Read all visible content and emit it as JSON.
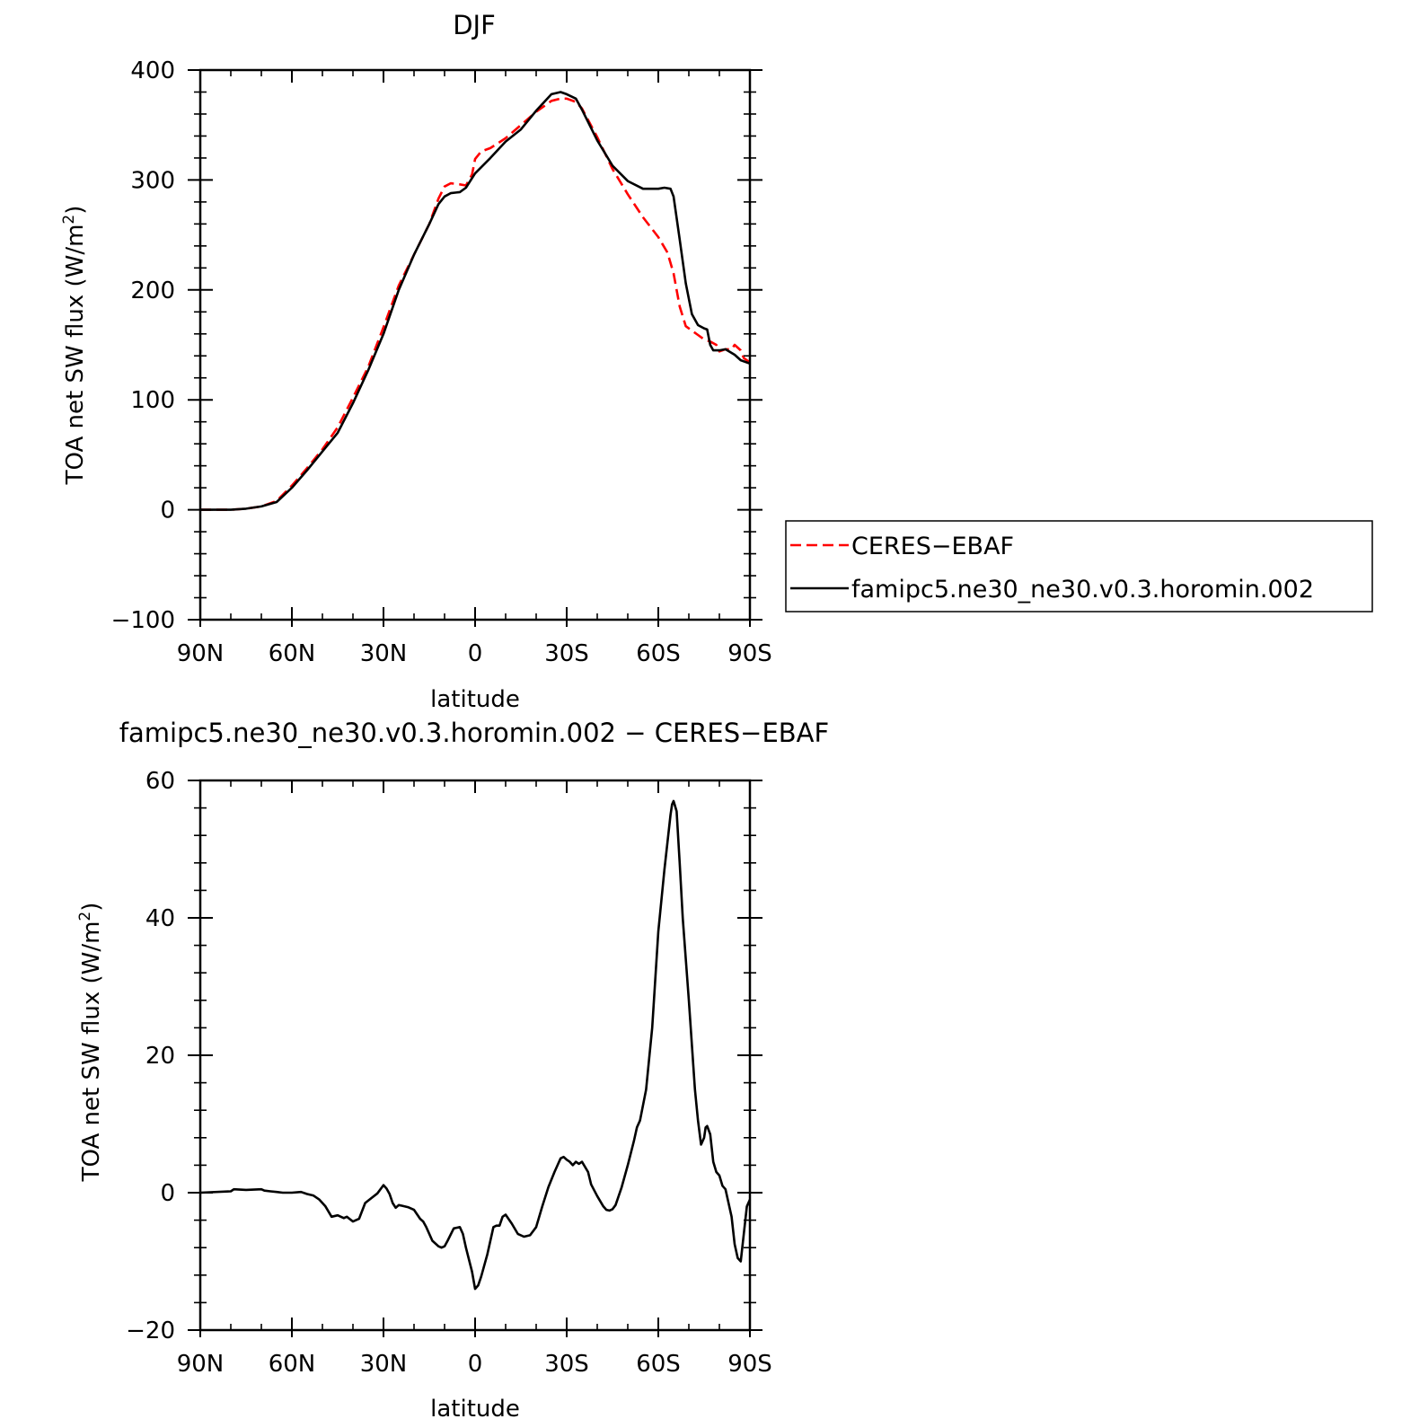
{
  "chart_data": [
    {
      "type": "line",
      "title": "DJF",
      "xlabel": "latitude",
      "ylabel_main": "TOA net SW flux (W/m",
      "ylabel_sup": "2",
      "ylabel_close": ")",
      "xlim": [
        90,
        -90
      ],
      "ylim": [
        -100,
        400
      ],
      "xticks": [
        90,
        60,
        30,
        0,
        -30,
        -60,
        -90
      ],
      "xtick_labels": [
        "90N",
        "60N",
        "30N",
        "0",
        "30S",
        "60S",
        "90S"
      ],
      "yticks": [
        -100,
        0,
        100,
        200,
        300,
        400
      ],
      "ytick_labels": [
        "−100",
        "0",
        "100",
        "200",
        "300",
        "400"
      ],
      "legend_position": "right",
      "series": [
        {
          "name": "CERES−EBAF",
          "color": "#ff0000",
          "dash": "dashed",
          "x": [
            90,
            85,
            80,
            75,
            70,
            65,
            60,
            55,
            50,
            45,
            40,
            35,
            30,
            25,
            20,
            15,
            12,
            10,
            8,
            5,
            3,
            1,
            0,
            -2,
            -5,
            -10,
            -15,
            -20,
            -25,
            -28,
            -30,
            -33,
            -35,
            -40,
            -45,
            -50,
            -55,
            -60,
            -63,
            -65,
            -67,
            -69,
            -71,
            -73,
            -75,
            -77,
            -79,
            -80,
            -82,
            -84,
            -85,
            -87,
            -88,
            -90
          ],
          "y": [
            0,
            0,
            0,
            1,
            3,
            8,
            22,
            38,
            55,
            75,
            102,
            130,
            166,
            204,
            232,
            260,
            283,
            294,
            297,
            296,
            295,
            305,
            319,
            326,
            329,
            338,
            350,
            362,
            372,
            374,
            374,
            371,
            365,
            339,
            310,
            287,
            266,
            248,
            234,
            215,
            185,
            167,
            163,
            159,
            155,
            153,
            150,
            144,
            146,
            146,
            150,
            145,
            138,
            134
          ]
        },
        {
          "name": "famipc5.ne30_ne30.v0.3.horomin.002",
          "color": "#000000",
          "dash": "solid",
          "x": [
            90,
            85,
            80,
            75,
            70,
            65,
            60,
            55,
            50,
            45,
            40,
            35,
            30,
            25,
            20,
            15,
            12,
            10,
            8,
            5,
            3,
            0,
            -5,
            -10,
            -15,
            -20,
            -25,
            -28,
            -30,
            -33,
            -35,
            -40,
            -45,
            -50,
            -55,
            -60,
            -62,
            -64,
            -65,
            -67,
            -69,
            -71,
            -73,
            -75,
            -76,
            -77,
            -78,
            -80,
            -82,
            -85,
            -87,
            -90
          ],
          "y": [
            0,
            0,
            0,
            1,
            3,
            7,
            20,
            36,
            53,
            70,
            97,
            127,
            160,
            200,
            232,
            260,
            278,
            285,
            288,
            289,
            293,
            306,
            320,
            335,
            346,
            363,
            378,
            380,
            378,
            374,
            364,
            336,
            313,
            299,
            292,
            292,
            293,
            292,
            285,
            246,
            206,
            178,
            168,
            165,
            164,
            150,
            145,
            145,
            146,
            141,
            136,
            133
          ]
        }
      ]
    },
    {
      "type": "line",
      "title": "famipc5.ne30_ne30.v0.3.horomin.002 − CERES−EBAF",
      "xlabel": "latitude",
      "ylabel_main": "TOA net SW flux (W/m",
      "ylabel_sup": "2",
      "ylabel_close": ")",
      "xlim": [
        90,
        -90
      ],
      "ylim": [
        -20,
        60
      ],
      "xticks": [
        90,
        60,
        30,
        0,
        -30,
        -60,
        -90
      ],
      "xtick_labels": [
        "90N",
        "60N",
        "30N",
        "0",
        "30S",
        "60S",
        "90S"
      ],
      "yticks": [
        -20,
        0,
        20,
        40,
        60
      ],
      "ytick_labels": [
        "−20",
        "0",
        "20",
        "40",
        "60"
      ],
      "series": [
        {
          "name": "",
          "color": "#000000",
          "dash": "solid",
          "x": [
            90,
            80,
            79,
            75,
            70,
            69,
            67,
            65,
            63,
            60,
            57,
            55,
            53,
            51,
            49,
            47,
            45,
            43,
            42,
            40,
            38,
            36,
            34,
            32,
            30,
            29,
            28,
            27,
            26,
            25,
            24,
            22,
            20,
            18,
            17,
            16,
            14,
            12,
            11,
            10,
            9,
            7,
            5,
            4,
            3,
            1,
            0,
            -1,
            -2,
            -4,
            -6,
            -7,
            -8,
            -9,
            -10,
            -12,
            -14,
            -16,
            -18,
            -20,
            -22,
            -24,
            -26,
            -27,
            -28,
            -29,
            -30,
            -31,
            -32,
            -33,
            -34,
            -35,
            -37,
            -38,
            -40,
            -42,
            -43,
            -44,
            -45,
            -46,
            -48,
            -50,
            -52,
            -53,
            -54,
            -56,
            -58,
            -59,
            -60,
            -62,
            -63,
            -64,
            -64.5,
            -65,
            -66,
            -67,
            -68,
            -70,
            -72,
            -73,
            -74,
            -75,
            -75.5,
            -76,
            -77,
            -78,
            -79,
            -80,
            -81,
            -82,
            -83,
            -84,
            -85,
            -86,
            -87,
            -88,
            -89,
            -90
          ],
          "y": [
            0,
            0.2,
            0.5,
            0.4,
            0.5,
            0.3,
            0.2,
            0.1,
            0,
            0,
            0.1,
            -0.2,
            -0.4,
            -1,
            -2,
            -3.5,
            -3.3,
            -3.7,
            -3.5,
            -4.2,
            -3.8,
            -1.5,
            -0.8,
            -0.1,
            1.1,
            0.6,
            -0.2,
            -1.5,
            -2.2,
            -1.8,
            -1.9,
            -2.1,
            -2.5,
            -3.8,
            -4.2,
            -5,
            -7,
            -7.8,
            -8,
            -7.8,
            -7,
            -5.2,
            -5,
            -6,
            -8,
            -11.5,
            -14,
            -13.5,
            -12.2,
            -9,
            -5,
            -4.8,
            -4.8,
            -3.5,
            -3.2,
            -4.5,
            -6,
            -6.4,
            -6.2,
            -5,
            -2,
            0.8,
            3,
            4,
            5,
            5.2,
            4.8,
            4.5,
            4,
            4.5,
            4.2,
            4.5,
            3,
            1.2,
            -0.5,
            -2,
            -2.5,
            -2.6,
            -2.4,
            -1.8,
            0.8,
            4,
            7.5,
            9.5,
            10.5,
            15,
            24,
            31,
            38,
            47,
            51,
            55,
            56.5,
            57,
            55.5,
            48,
            40,
            28,
            15,
            10.5,
            7,
            8,
            9.5,
            9.7,
            8.5,
            4.5,
            3,
            2.5,
            1,
            0.5,
            -1.5,
            -3.5,
            -7.5,
            -9.5,
            -10,
            -6,
            -2,
            -1
          ]
        }
      ]
    }
  ]
}
